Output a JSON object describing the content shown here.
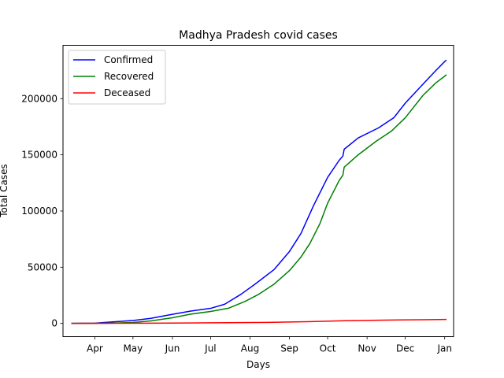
{
  "chart_data": {
    "type": "line",
    "title": "Madhya Pradesh covid cases",
    "xlabel": "Days",
    "ylabel": "Total Cases",
    "x_ticks": [
      {
        "label": "Apr",
        "date": "2020-04-01"
      },
      {
        "label": "May",
        "date": "2020-05-01"
      },
      {
        "label": "Jun",
        "date": "2020-06-01"
      },
      {
        "label": "Jul",
        "date": "2020-07-01"
      },
      {
        "label": "Aug",
        "date": "2020-08-01"
      },
      {
        "label": "Sep",
        "date": "2020-09-01"
      },
      {
        "label": "Oct",
        "date": "2020-10-01"
      },
      {
        "label": "Nov",
        "date": "2020-11-01"
      },
      {
        "label": "Dec",
        "date": "2020-12-01"
      },
      {
        "label": "Jan",
        "date": "2021-01-01"
      }
    ],
    "y_ticks": [
      0,
      50000,
      100000,
      150000,
      200000
    ],
    "y_tick_labels": [
      "0",
      "50000",
      "100000",
      "150000",
      "200000"
    ],
    "xlim": [
      "2020-03-07",
      "2021-01-08"
    ],
    "ylim": [
      -11800,
      247500
    ],
    "legend_position": "upper-left",
    "grid": false,
    "series": [
      {
        "name": "Confirmed",
        "color": "#0000ff",
        "points": [
          [
            "2020-03-14",
            0
          ],
          [
            "2020-04-01",
            200
          ],
          [
            "2020-04-15",
            1300
          ],
          [
            "2020-05-01",
            2600
          ],
          [
            "2020-05-15",
            4500
          ],
          [
            "2020-06-01",
            8100
          ],
          [
            "2020-06-15",
            10900
          ],
          [
            "2020-07-01",
            13400
          ],
          [
            "2020-07-12",
            17000
          ],
          [
            "2020-07-25",
            26000
          ],
          [
            "2020-08-05",
            35000
          ],
          [
            "2020-08-20",
            48000
          ],
          [
            "2020-09-01",
            64000
          ],
          [
            "2020-09-10",
            80000
          ],
          [
            "2020-09-20",
            105000
          ],
          [
            "2020-10-01",
            130000
          ],
          [
            "2020-10-10",
            145000
          ],
          [
            "2020-10-13",
            149000
          ],
          [
            "2020-10-14",
            155000
          ],
          [
            "2020-10-25",
            165000
          ],
          [
            "2020-11-10",
            174000
          ],
          [
            "2020-11-22",
            183000
          ],
          [
            "2020-12-01",
            196000
          ],
          [
            "2020-12-15",
            213000
          ],
          [
            "2020-12-25",
            225000
          ],
          [
            "2021-01-01",
            233000
          ],
          [
            "2021-01-02",
            234000
          ]
        ]
      },
      {
        "name": "Recovered",
        "color": "#008000",
        "points": [
          [
            "2020-03-14",
            0
          ],
          [
            "2020-04-01",
            0
          ],
          [
            "2020-04-15",
            300
          ],
          [
            "2020-05-01",
            800
          ],
          [
            "2020-05-15",
            2200
          ],
          [
            "2020-06-01",
            5000
          ],
          [
            "2020-06-15",
            8200
          ],
          [
            "2020-07-01",
            10600
          ],
          [
            "2020-07-15",
            13500
          ],
          [
            "2020-07-28",
            19500
          ],
          [
            "2020-08-08",
            26000
          ],
          [
            "2020-08-20",
            35000
          ],
          [
            "2020-09-01",
            47000
          ],
          [
            "2020-09-10",
            59000
          ],
          [
            "2020-09-17",
            71000
          ],
          [
            "2020-09-25",
            89000
          ],
          [
            "2020-10-01",
            107000
          ],
          [
            "2020-10-10",
            127000
          ],
          [
            "2020-10-13",
            132000
          ],
          [
            "2020-10-14",
            139000
          ],
          [
            "2020-10-25",
            150000
          ],
          [
            "2020-11-08",
            162000
          ],
          [
            "2020-11-20",
            171000
          ],
          [
            "2020-12-01",
            183000
          ],
          [
            "2020-12-15",
            203000
          ],
          [
            "2020-12-25",
            214000
          ],
          [
            "2021-01-01",
            220000
          ],
          [
            "2021-01-02",
            221000
          ]
        ]
      },
      {
        "name": "Deceased",
        "color": "#ff0000",
        "points": [
          [
            "2020-03-14",
            0
          ],
          [
            "2020-04-15",
            100
          ],
          [
            "2020-05-15",
            200
          ],
          [
            "2020-06-15",
            350
          ],
          [
            "2020-07-15",
            650
          ],
          [
            "2020-08-15",
            900
          ],
          [
            "2020-09-15",
            1500
          ],
          [
            "2020-10-15",
            2400
          ],
          [
            "2020-11-15",
            2900
          ],
          [
            "2020-12-15",
            3300
          ],
          [
            "2021-01-02",
            3500
          ]
        ]
      }
    ]
  }
}
